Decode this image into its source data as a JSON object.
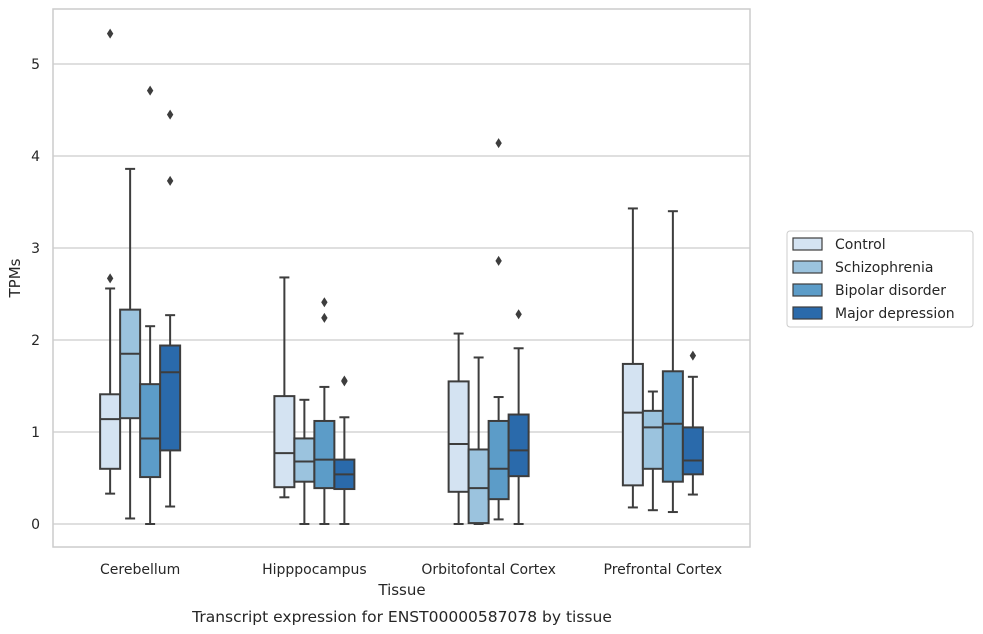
{
  "chart_data": {
    "type": "boxplot",
    "caption": "Transcript expression for ENST00000587078 by tissue",
    "xlabel": "Tissue",
    "ylabel": "TPMs",
    "ylim": [
      -0.25,
      5.6
    ],
    "yticks": [
      0,
      1,
      2,
      3,
      4,
      5
    ],
    "grid": "horizontal",
    "legend_placement": "right",
    "categories": [
      "Cerebellum",
      "Hipppocampus",
      "Orbitofontal Cortex",
      "Prefrontal Cortex"
    ],
    "series": [
      {
        "name": "Control",
        "color": "#d4e3f2",
        "boxes": [
          {
            "whislo": 0.33,
            "q1": 0.6,
            "med": 1.14,
            "q3": 1.41,
            "whishi": 2.56,
            "fliers": [
              2.67,
              5.33
            ]
          },
          {
            "whislo": 0.29,
            "q1": 0.4,
            "med": 0.77,
            "q3": 1.39,
            "whishi": 2.68,
            "fliers": []
          },
          {
            "whislo": 0.0,
            "q1": 0.35,
            "med": 0.87,
            "q3": 1.55,
            "whishi": 2.07,
            "fliers": []
          },
          {
            "whislo": 0.18,
            "q1": 0.42,
            "med": 1.21,
            "q3": 1.74,
            "whishi": 3.43,
            "fliers": []
          }
        ]
      },
      {
        "name": "Schizophrenia",
        "color": "#9bc3de",
        "boxes": [
          {
            "whislo": 0.06,
            "q1": 1.15,
            "med": 1.85,
            "q3": 2.33,
            "whishi": 3.86,
            "fliers": []
          },
          {
            "whislo": 0.0,
            "q1": 0.46,
            "med": 0.68,
            "q3": 0.93,
            "whishi": 1.35,
            "fliers": []
          },
          {
            "whislo": 0.0,
            "q1": 0.01,
            "med": 0.39,
            "q3": 0.81,
            "whishi": 1.81,
            "fliers": []
          },
          {
            "whislo": 0.15,
            "q1": 0.6,
            "med": 1.05,
            "q3": 1.23,
            "whishi": 1.44,
            "fliers": []
          }
        ]
      },
      {
        "name": "Bipolar disorder",
        "color": "#5c9cc8",
        "boxes": [
          {
            "whislo": 0.0,
            "q1": 0.51,
            "med": 0.93,
            "q3": 1.52,
            "whishi": 2.15,
            "fliers": [
              4.71
            ]
          },
          {
            "whislo": 0.0,
            "q1": 0.39,
            "med": 0.7,
            "q3": 1.12,
            "whishi": 1.49,
            "fliers": [
              2.24,
              2.41
            ]
          },
          {
            "whislo": 0.05,
            "q1": 0.27,
            "med": 0.6,
            "q3": 1.12,
            "whishi": 1.38,
            "fliers": [
              2.86,
              4.14
            ]
          },
          {
            "whislo": 0.13,
            "q1": 0.46,
            "med": 1.09,
            "q3": 1.66,
            "whishi": 3.4,
            "fliers": []
          }
        ]
      },
      {
        "name": "Major depression",
        "color": "#2a6aab",
        "boxes": [
          {
            "whislo": 0.19,
            "q1": 0.8,
            "med": 1.65,
            "q3": 1.94,
            "whishi": 2.27,
            "fliers": [
              3.73,
              4.45
            ]
          },
          {
            "whislo": 0.0,
            "q1": 0.38,
            "med": 0.54,
            "q3": 0.7,
            "whishi": 1.16,
            "fliers": [
              1.55,
              1.56
            ]
          },
          {
            "whislo": 0.0,
            "q1": 0.52,
            "med": 0.8,
            "q3": 1.19,
            "whishi": 1.91,
            "fliers": [
              2.28
            ]
          },
          {
            "whislo": 0.32,
            "q1": 0.54,
            "med": 0.69,
            "q3": 1.05,
            "whishi": 1.6,
            "fliers": [
              1.83
            ]
          }
        ]
      }
    ]
  }
}
